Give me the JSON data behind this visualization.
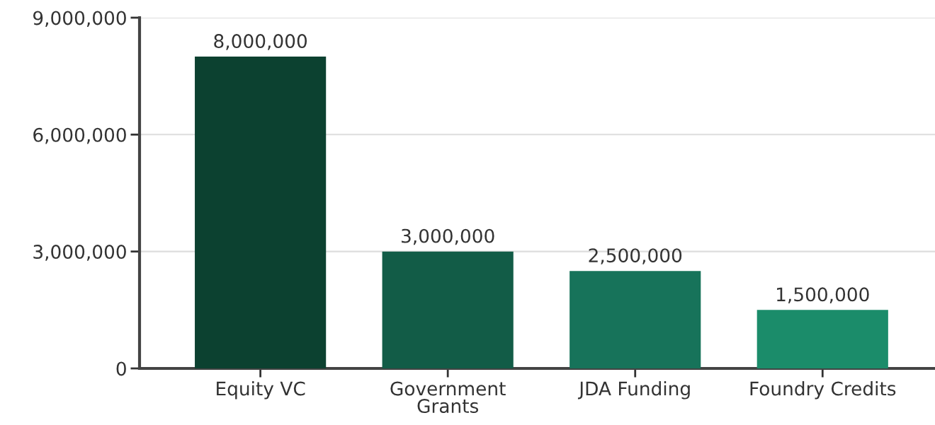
{
  "chart_data": {
    "type": "bar",
    "categories": [
      "Equity VC",
      "Government Grants",
      "JDA Funding",
      "Foundry Credits"
    ],
    "values": [
      8000000,
      3000000,
      2500000,
      1500000
    ],
    "colors": [
      "#0c4130",
      "#125c47",
      "#17735a",
      "#1b8c6a"
    ],
    "ylim": [
      0,
      9000000
    ],
    "yticks": [
      {
        "value": 0,
        "label": "0"
      },
      {
        "value": 3000000,
        "label": "3,000,000"
      },
      {
        "value": 6000000,
        "label": "6,000,000"
      },
      {
        "value": 9000000,
        "label": "9,000,000"
      }
    ],
    "value_labels": [
      "8,000,000",
      "3,000,000",
      "2,500,000",
      "1,500,000"
    ],
    "grid": "y",
    "legend": false
  }
}
